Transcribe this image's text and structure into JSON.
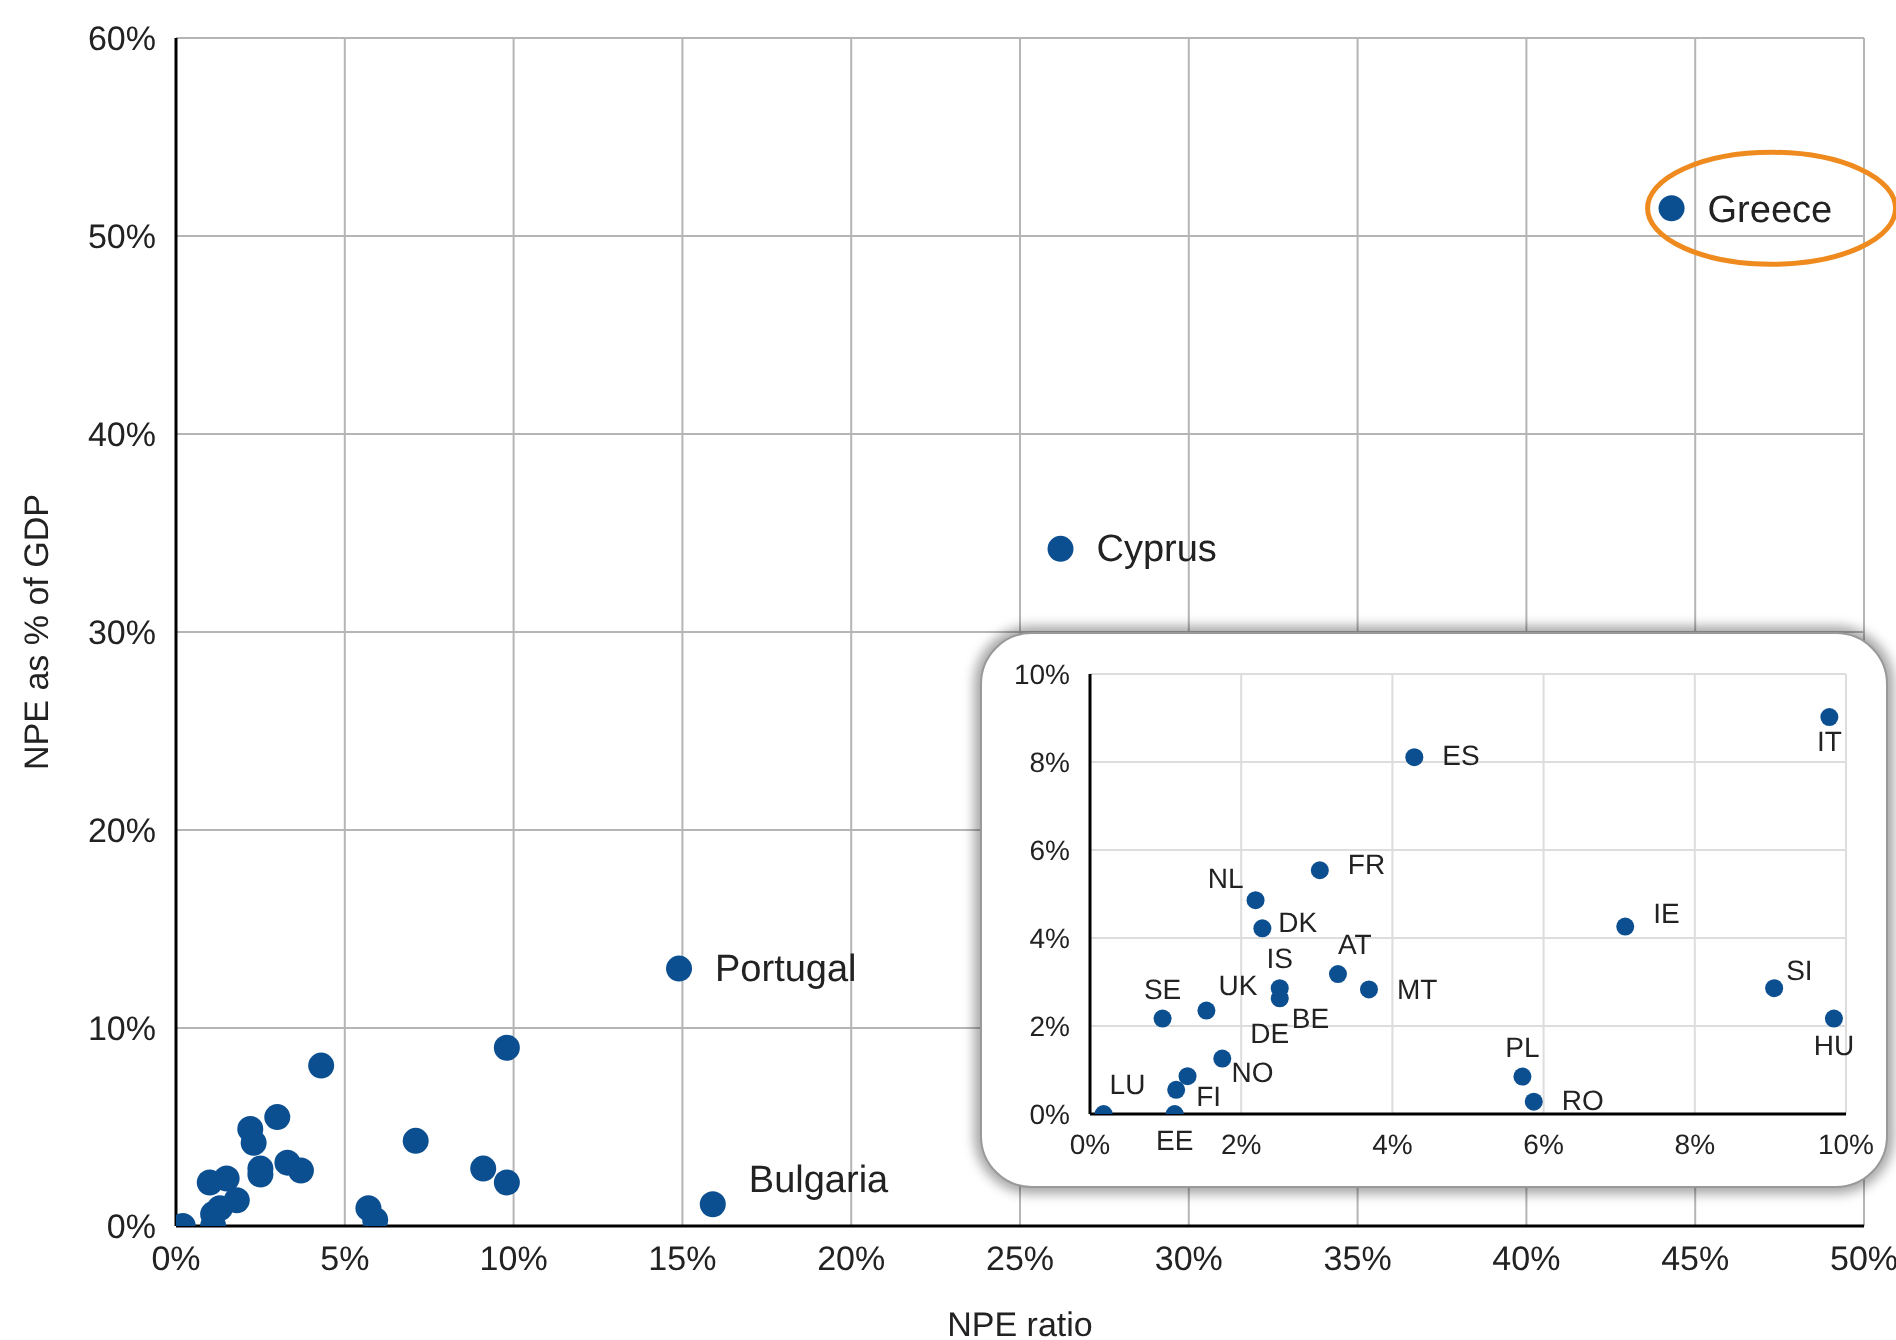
{
  "chart_data": [
    {
      "type": "scatter",
      "xlabel": "NPE ratio",
      "ylabel": "NPE as % of GDP",
      "marker": "circle",
      "grid": true,
      "xlim": [
        0,
        50
      ],
      "ylim": [
        0,
        60
      ],
      "xticks": [
        {
          "value": 0,
          "label": "0%"
        },
        {
          "value": 5,
          "label": "5%"
        },
        {
          "value": 10,
          "label": "10%"
        },
        {
          "value": 15,
          "label": "15%"
        },
        {
          "value": 20,
          "label": "20%"
        },
        {
          "value": 25,
          "label": "25%"
        },
        {
          "value": 30,
          "label": "30%"
        },
        {
          "value": 35,
          "label": "35%"
        },
        {
          "value": 40,
          "label": "40%"
        },
        {
          "value": 45,
          "label": "45%"
        },
        {
          "value": 50,
          "label": "50%"
        }
      ],
      "yticks": [
        {
          "value": 0,
          "label": "0%"
        },
        {
          "value": 10,
          "label": "10%"
        },
        {
          "value": 20,
          "label": "20%"
        },
        {
          "value": 30,
          "label": "30%"
        },
        {
          "value": 40,
          "label": "40%"
        },
        {
          "value": 50,
          "label": "50%"
        },
        {
          "value": 60,
          "label": "60%"
        }
      ],
      "series": [
        {
          "color": "#0b4f91",
          "x": [
            44.3,
            26.2,
            14.9,
            15.9,
            0.2,
            1.1,
            1.1,
            1.3,
            1.8,
            1.0,
            1.5,
            2.5,
            2.5,
            3.3,
            3.7,
            2.2,
            2.3,
            3.0,
            4.3,
            7.1,
            9.1,
            9.8,
            9.8,
            5.7,
            5.9
          ],
          "values": [
            51.4,
            34.2,
            13.0,
            1.1,
            0.0,
            0.0,
            0.6,
            0.9,
            1.3,
            2.2,
            2.4,
            2.9,
            2.6,
            3.2,
            2.8,
            4.9,
            4.2,
            5.5,
            8.1,
            4.3,
            2.9,
            2.2,
            9.0,
            0.9,
            0.3
          ]
        }
      ],
      "annotations": [
        {
          "text": "Greece",
          "x": 44.3,
          "y": 51.4
        },
        {
          "text": "Cyprus",
          "x": 26.2,
          "y": 34.2
        },
        {
          "text": "Portugal",
          "x": 14.9,
          "y": 13.0
        },
        {
          "text": "Bulgaria",
          "x": 15.9,
          "y": 1.1
        }
      ]
    },
    {
      "type": "scatter",
      "marker": "circle",
      "grid": true,
      "xlim": [
        0,
        10
      ],
      "ylim": [
        0,
        10
      ],
      "xticks": [
        {
          "value": 0,
          "label": "0%"
        },
        {
          "value": 2,
          "label": "2%"
        },
        {
          "value": 4,
          "label": "4%"
        },
        {
          "value": 6,
          "label": "6%"
        },
        {
          "value": 8,
          "label": "8%"
        },
        {
          "value": 10,
          "label": "10%"
        }
      ],
      "yticks": [
        {
          "value": 0,
          "label": "0%"
        },
        {
          "value": 2,
          "label": "2%"
        },
        {
          "value": 4,
          "label": "4%"
        },
        {
          "value": 6,
          "label": "6%"
        },
        {
          "value": 8,
          "label": "8%"
        },
        {
          "value": 10,
          "label": "10%"
        }
      ],
      "series": [
        {
          "color": "#0b4f91",
          "x": [
            0.18,
            1.12,
            1.14,
            1.29,
            1.75,
            0.96,
            1.54,
            2.51,
            2.51,
            3.28,
            3.69,
            2.19,
            2.28,
            3.04,
            4.29,
            7.08,
            9.05,
            9.84,
            9.78,
            5.72,
            5.87
          ],
          "values": [
            0.0,
            0.0,
            0.55,
            0.86,
            1.26,
            2.17,
            2.35,
            2.86,
            2.63,
            3.18,
            2.83,
            4.86,
            4.22,
            5.54,
            8.11,
            4.26,
            2.86,
            2.17,
            9.02,
            0.85,
            0.28
          ]
        }
      ],
      "annotations": [
        {
          "text": "LU",
          "x": 0.18,
          "y": 0.0
        },
        {
          "text": "EE",
          "x": 1.12,
          "y": 0.0
        },
        {
          "text": "FI",
          "x": 1.14,
          "y": 0.55
        },
        {
          "text": "NO",
          "x": 1.29,
          "y": 0.86
        },
        {
          "text": "DE",
          "x": 1.75,
          "y": 1.26
        },
        {
          "text": "SE",
          "x": 0.96,
          "y": 2.17
        },
        {
          "text": "UK",
          "x": 1.54,
          "y": 2.35
        },
        {
          "text": "IS",
          "x": 2.51,
          "y": 2.86
        },
        {
          "text": "BE",
          "x": 2.51,
          "y": 2.63
        },
        {
          "text": "AT",
          "x": 3.28,
          "y": 3.18
        },
        {
          "text": "MT",
          "x": 3.69,
          "y": 2.83
        },
        {
          "text": "NL",
          "x": 2.19,
          "y": 4.86
        },
        {
          "text": "DK",
          "x": 2.28,
          "y": 4.22
        },
        {
          "text": "FR",
          "x": 3.04,
          "y": 5.54
        },
        {
          "text": "ES",
          "x": 4.29,
          "y": 8.11
        },
        {
          "text": "IE",
          "x": 7.08,
          "y": 4.26
        },
        {
          "text": "SI",
          "x": 9.05,
          "y": 2.86
        },
        {
          "text": "HU",
          "x": 9.84,
          "y": 2.17
        },
        {
          "text": "IT",
          "x": 9.78,
          "y": 9.02
        },
        {
          "text": "PL",
          "x": 5.72,
          "y": 0.85
        },
        {
          "text": "RO",
          "x": 5.87,
          "y": 0.28
        }
      ]
    }
  ]
}
